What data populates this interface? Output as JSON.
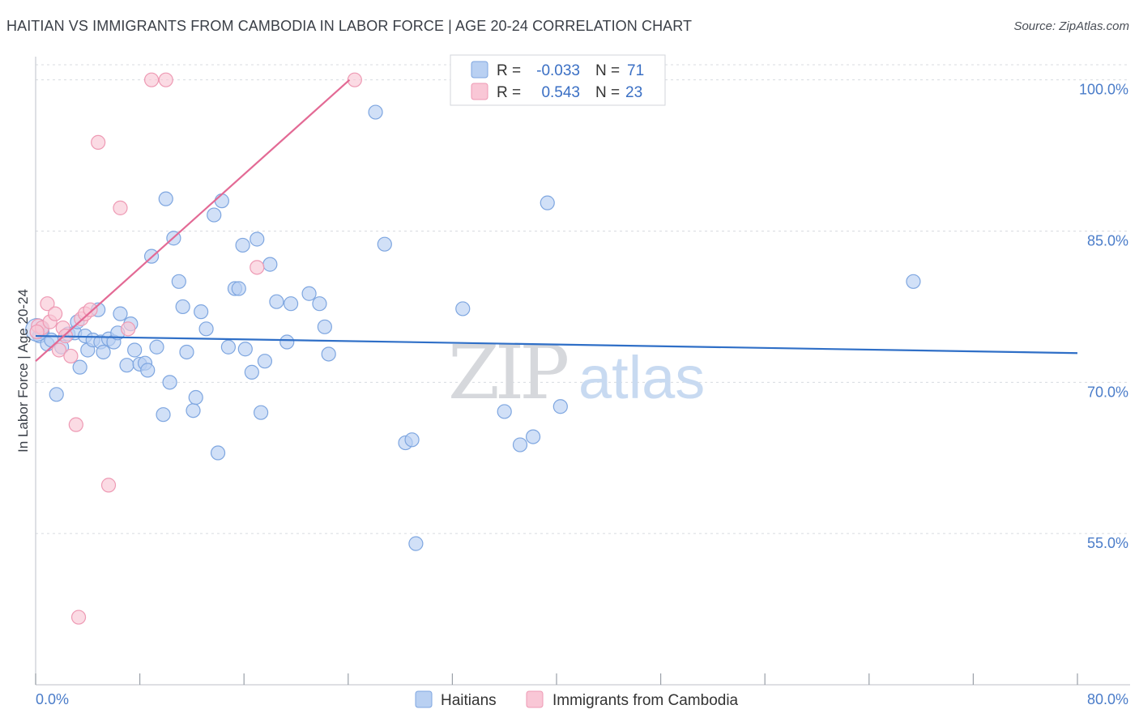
{
  "title": "HAITIAN VS IMMIGRANTS FROM CAMBODIA IN LABOR FORCE | AGE 20-24 CORRELATION CHART",
  "source": "Source: ZipAtlas.com",
  "watermark": {
    "zip": "ZIP",
    "atlas": "atlas"
  },
  "colors": {
    "blue_fill": "#b9d0f2",
    "blue_stroke": "#7ea6e0",
    "blue_line": "#2f6fc7",
    "pink_fill": "#f9c7d6",
    "pink_stroke": "#ee9ab4",
    "pink_line": "#e36a95",
    "tick_text": "#4a7cc9",
    "grid": "#d8dbe0"
  },
  "legend": {
    "rows": [
      {
        "r_label": "R =",
        "r_value": "-0.033",
        "n_label": "N =",
        "n_value": "71"
      },
      {
        "r_label": "R =",
        "r_value": "0.543",
        "n_label": "N =",
        "n_value": "23"
      }
    ]
  },
  "chart_data": {
    "type": "scatter",
    "title": "HAITIAN VS IMMIGRANTS FROM CAMBODIA IN LABOR FORCE | AGE 20-24 CORRELATION CHART",
    "xlabel": "",
    "ylabel": "In Labor Force | Age 20-24",
    "xlim": [
      0,
      80
    ],
    "ylim": [
      40,
      101.5
    ],
    "x_tick_labels": [
      "0.0%",
      "80.0%"
    ],
    "y_ticks": [
      55,
      70,
      85,
      100
    ],
    "y_tick_labels": [
      "55.0%",
      "70.0%",
      "85.0%",
      "100.0%"
    ],
    "grid": true,
    "legend_position": "top-center",
    "series": [
      {
        "name": "Haitians",
        "R": -0.033,
        "N": 71,
        "trend": {
          "x": [
            0,
            80
          ],
          "y": [
            74.6,
            72.9
          ]
        },
        "points": [
          [
            0.3,
            74.6
          ],
          [
            0.5,
            75.0
          ],
          [
            0.9,
            73.8
          ],
          [
            1.2,
            74.2
          ],
          [
            1.6,
            68.8
          ],
          [
            2.0,
            73.5
          ],
          [
            2.5,
            74.8
          ],
          [
            3.0,
            74.9
          ],
          [
            3.2,
            76.0
          ],
          [
            3.4,
            71.5
          ],
          [
            3.8,
            74.6
          ],
          [
            4.0,
            73.2
          ],
          [
            4.4,
            74.2
          ],
          [
            4.8,
            77.2
          ],
          [
            5.0,
            74.0
          ],
          [
            5.2,
            73.0
          ],
          [
            5.6,
            74.3
          ],
          [
            6.0,
            74.0
          ],
          [
            6.3,
            74.9
          ],
          [
            6.5,
            76.8
          ],
          [
            7.0,
            71.7
          ],
          [
            7.3,
            75.8
          ],
          [
            7.6,
            73.2
          ],
          [
            8.0,
            71.8
          ],
          [
            8.4,
            71.9
          ],
          [
            8.6,
            71.2
          ],
          [
            8.9,
            82.5
          ],
          [
            9.3,
            73.5
          ],
          [
            9.8,
            66.8
          ],
          [
            10.0,
            88.2
          ],
          [
            10.3,
            70.0
          ],
          [
            10.6,
            84.3
          ],
          [
            11.0,
            80.0
          ],
          [
            11.3,
            77.5
          ],
          [
            11.6,
            73.0
          ],
          [
            12.1,
            67.2
          ],
          [
            12.3,
            68.5
          ],
          [
            12.7,
            77.0
          ],
          [
            13.1,
            75.3
          ],
          [
            13.7,
            86.6
          ],
          [
            14.0,
            63.0
          ],
          [
            14.3,
            88.0
          ],
          [
            14.8,
            73.5
          ],
          [
            15.3,
            79.3
          ],
          [
            15.6,
            79.3
          ],
          [
            15.9,
            83.6
          ],
          [
            16.1,
            73.3
          ],
          [
            16.6,
            71.0
          ],
          [
            17.0,
            84.2
          ],
          [
            17.3,
            67.0
          ],
          [
            17.6,
            72.1
          ],
          [
            18.0,
            81.7
          ],
          [
            18.5,
            78.0
          ],
          [
            19.3,
            74.0
          ],
          [
            19.6,
            77.8
          ],
          [
            21.0,
            78.8
          ],
          [
            21.8,
            77.8
          ],
          [
            22.2,
            75.5
          ],
          [
            22.5,
            72.8
          ],
          [
            26.1,
            96.8
          ],
          [
            26.8,
            83.7
          ],
          [
            28.4,
            64.0
          ],
          [
            28.9,
            64.3
          ],
          [
            29.2,
            54.0
          ],
          [
            32.8,
            77.3
          ],
          [
            36.0,
            67.1
          ],
          [
            37.2,
            63.8
          ],
          [
            38.2,
            64.6
          ],
          [
            39.3,
            87.8
          ],
          [
            40.3,
            67.6
          ],
          [
            67.4,
            80.0
          ]
        ]
      },
      {
        "name": "Immigrants from Cambodia",
        "R": 0.543,
        "N": 23,
        "trend": {
          "x": [
            0,
            24.1
          ],
          "y": [
            72.1,
            100.0
          ]
        },
        "points": [
          [
            0.2,
            75.6
          ],
          [
            0.5,
            75.4
          ],
          [
            0.9,
            77.8
          ],
          [
            1.1,
            76.0
          ],
          [
            1.5,
            76.8
          ],
          [
            1.8,
            73.2
          ],
          [
            2.1,
            75.4
          ],
          [
            2.3,
            74.6
          ],
          [
            2.7,
            72.6
          ],
          [
            3.1,
            65.8
          ],
          [
            3.5,
            76.3
          ],
          [
            3.8,
            76.8
          ],
          [
            4.2,
            77.2
          ],
          [
            4.8,
            93.8
          ],
          [
            6.5,
            87.3
          ],
          [
            7.1,
            75.3
          ],
          [
            8.9,
            100.0
          ],
          [
            10.0,
            100.0
          ],
          [
            17.0,
            81.4
          ],
          [
            24.5,
            100.0
          ],
          [
            5.6,
            59.8
          ],
          [
            3.3,
            46.7
          ],
          [
            0.1,
            75.0
          ]
        ]
      }
    ]
  },
  "bottom_legend": {
    "items": [
      "Haitians",
      "Immigrants from Cambodia"
    ]
  }
}
